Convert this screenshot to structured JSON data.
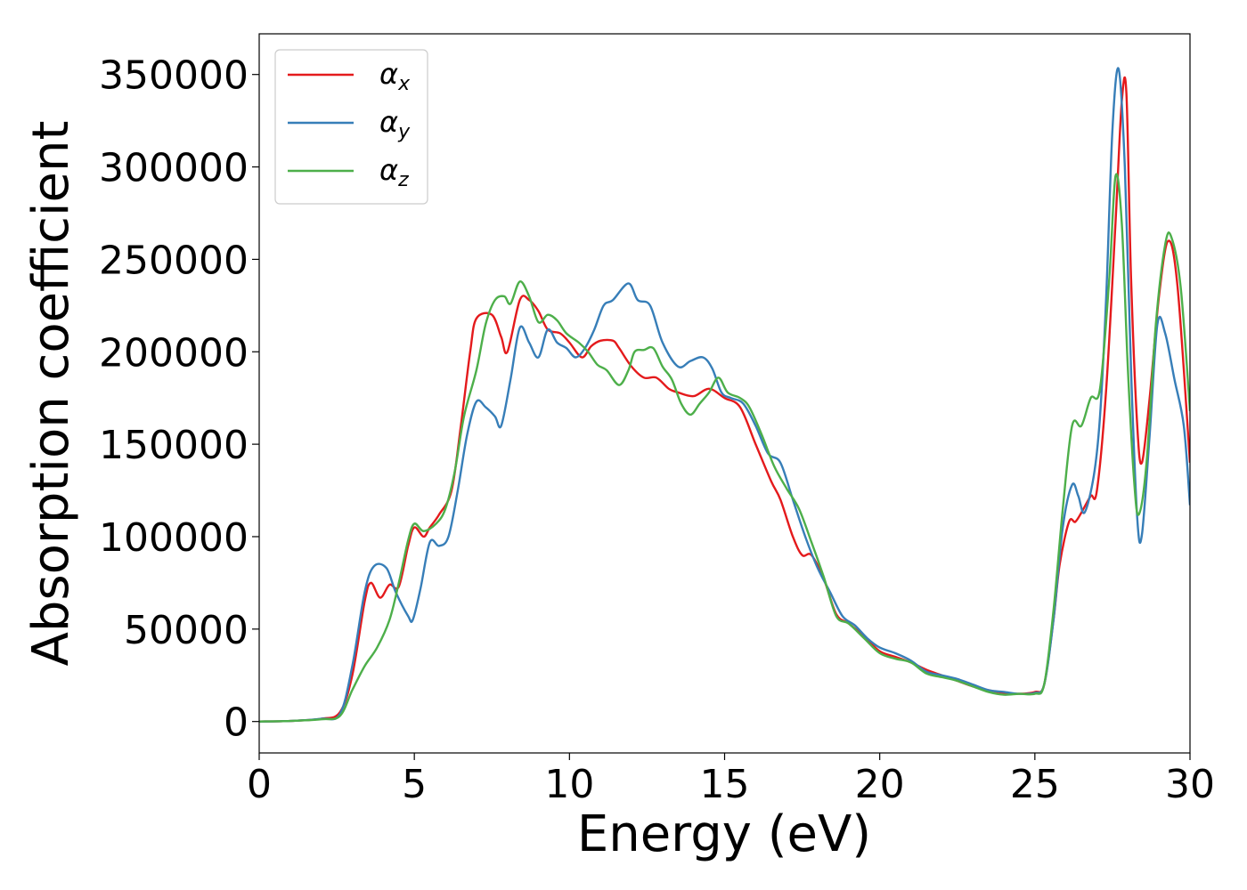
{
  "chart_data": {
    "type": "line",
    "title": "",
    "xlabel": "Energy (eV)",
    "ylabel": "Absorption coefficient",
    "xlim": [
      0,
      30
    ],
    "ylim": [
      -17000,
      372000
    ],
    "xticks": [
      0,
      5,
      10,
      15,
      20,
      25,
      30
    ],
    "xtick_labels": [
      "0",
      "5",
      "10",
      "15",
      "20",
      "25",
      "30"
    ],
    "yticks": [
      0,
      50000,
      100000,
      150000,
      200000,
      250000,
      300000,
      350000
    ],
    "ytick_labels": [
      "0",
      "50000",
      "100000",
      "150000",
      "200000",
      "250000",
      "300000",
      "350000"
    ],
    "grid": false,
    "legend_position": "top-left",
    "series": [
      {
        "name": "α_x",
        "symbol": "α",
        "subscript": "x",
        "color": "#e41a1c",
        "points": [
          [
            0,
            0
          ],
          [
            1,
            300
          ],
          [
            2,
            1500
          ],
          [
            2.6,
            5000
          ],
          [
            3,
            25000
          ],
          [
            3.4,
            65000
          ],
          [
            3.6,
            75000
          ],
          [
            3.9,
            67000
          ],
          [
            4.2,
            74000
          ],
          [
            4.5,
            73000
          ],
          [
            4.8,
            95000
          ],
          [
            5,
            105000
          ],
          [
            5.3,
            100000
          ],
          [
            5.5,
            105000
          ],
          [
            5.8,
            112000
          ],
          [
            6.2,
            125000
          ],
          [
            6.5,
            160000
          ],
          [
            6.8,
            200000
          ],
          [
            7,
            218000
          ],
          [
            7.5,
            220000
          ],
          [
            7.8,
            208000
          ],
          [
            8,
            200000
          ],
          [
            8.4,
            228000
          ],
          [
            8.7,
            228000
          ],
          [
            9,
            222000
          ],
          [
            9.3,
            212000
          ],
          [
            9.7,
            210000
          ],
          [
            10,
            205000
          ],
          [
            10.4,
            197000
          ],
          [
            10.7,
            203000
          ],
          [
            11,
            206000
          ],
          [
            11.4,
            206000
          ],
          [
            11.6,
            202000
          ],
          [
            12,
            192000
          ],
          [
            12.4,
            186000
          ],
          [
            12.8,
            186000
          ],
          [
            13.2,
            180000
          ],
          [
            13.5,
            178000
          ],
          [
            14,
            176000
          ],
          [
            14.5,
            180000
          ],
          [
            15,
            175000
          ],
          [
            15.5,
            170000
          ],
          [
            16,
            150000
          ],
          [
            16.5,
            130000
          ],
          [
            16.8,
            120000
          ],
          [
            17.2,
            100000
          ],
          [
            17.5,
            90000
          ],
          [
            17.8,
            90000
          ],
          [
            18.2,
            77000
          ],
          [
            18.6,
            58000
          ],
          [
            19,
            53000
          ],
          [
            19.5,
            46000
          ],
          [
            20,
            38000
          ],
          [
            20.5,
            35000
          ],
          [
            21,
            32000
          ],
          [
            21.5,
            28000
          ],
          [
            22,
            25000
          ],
          [
            22.5,
            22000
          ],
          [
            23,
            19000
          ],
          [
            23.5,
            17000
          ],
          [
            24,
            15500
          ],
          [
            24.5,
            15000
          ],
          [
            25,
            16000
          ],
          [
            25.3,
            20000
          ],
          [
            25.6,
            55000
          ],
          [
            25.8,
            85000
          ],
          [
            26.1,
            108000
          ],
          [
            26.3,
            108000
          ],
          [
            26.5,
            113000
          ],
          [
            26.8,
            122000
          ],
          [
            27,
            125000
          ],
          [
            27.3,
            180000
          ],
          [
            27.6,
            270000
          ],
          [
            27.8,
            335000
          ],
          [
            27.95,
            340000
          ],
          [
            28.1,
            240000
          ],
          [
            28.3,
            160000
          ],
          [
            28.45,
            140000
          ],
          [
            28.7,
            175000
          ],
          [
            29,
            230000
          ],
          [
            29.3,
            260000
          ],
          [
            29.6,
            235000
          ],
          [
            30,
            140000
          ]
        ]
      },
      {
        "name": "α_y",
        "symbol": "α",
        "subscript": "y",
        "color": "#377eb8",
        "points": [
          [
            0,
            0
          ],
          [
            1,
            300
          ],
          [
            2,
            1500
          ],
          [
            2.6,
            4000
          ],
          [
            3,
            30000
          ],
          [
            3.4,
            70000
          ],
          [
            3.7,
            84000
          ],
          [
            4.1,
            83000
          ],
          [
            4.4,
            70000
          ],
          [
            4.8,
            57000
          ],
          [
            4.95,
            55000
          ],
          [
            5.2,
            72000
          ],
          [
            5.5,
            97000
          ],
          [
            5.8,
            95000
          ],
          [
            6.1,
            100000
          ],
          [
            6.4,
            125000
          ],
          [
            6.7,
            155000
          ],
          [
            7,
            173000
          ],
          [
            7.3,
            170000
          ],
          [
            7.6,
            165000
          ],
          [
            7.8,
            160000
          ],
          [
            8.1,
            185000
          ],
          [
            8.4,
            213000
          ],
          [
            8.7,
            205000
          ],
          [
            9,
            197000
          ],
          [
            9.3,
            212000
          ],
          [
            9.6,
            205000
          ],
          [
            9.9,
            202000
          ],
          [
            10.2,
            197000
          ],
          [
            10.5,
            202000
          ],
          [
            10.8,
            212000
          ],
          [
            11.1,
            225000
          ],
          [
            11.4,
            228000
          ],
          [
            11.9,
            237000
          ],
          [
            12.2,
            228000
          ],
          [
            12.6,
            225000
          ],
          [
            13,
            205000
          ],
          [
            13.5,
            192000
          ],
          [
            13.9,
            195000
          ],
          [
            14.3,
            197000
          ],
          [
            14.6,
            191000
          ],
          [
            14.9,
            178000
          ],
          [
            15.2,
            175000
          ],
          [
            15.6,
            172000
          ],
          [
            16,
            160000
          ],
          [
            16.4,
            145000
          ],
          [
            16.8,
            140000
          ],
          [
            17.2,
            120000
          ],
          [
            17.6,
            100000
          ],
          [
            18,
            83000
          ],
          [
            18.4,
            70000
          ],
          [
            18.8,
            57000
          ],
          [
            19.2,
            52000
          ],
          [
            19.6,
            45000
          ],
          [
            20,
            40000
          ],
          [
            20.5,
            37000
          ],
          [
            21,
            33000
          ],
          [
            21.5,
            27000
          ],
          [
            22,
            25000
          ],
          [
            22.5,
            23000
          ],
          [
            23,
            20000
          ],
          [
            23.5,
            17000
          ],
          [
            24,
            16000
          ],
          [
            24.5,
            15000
          ],
          [
            25,
            15500
          ],
          [
            25.3,
            20000
          ],
          [
            25.6,
            55000
          ],
          [
            25.9,
            105000
          ],
          [
            26.2,
            128000
          ],
          [
            26.4,
            122000
          ],
          [
            26.6,
            113000
          ],
          [
            26.9,
            133000
          ],
          [
            27.1,
            165000
          ],
          [
            27.3,
            230000
          ],
          [
            27.5,
            320000
          ],
          [
            27.7,
            353000
          ],
          [
            27.9,
            300000
          ],
          [
            28.1,
            190000
          ],
          [
            28.3,
            110000
          ],
          [
            28.45,
            101000
          ],
          [
            28.7,
            155000
          ],
          [
            28.95,
            215000
          ],
          [
            29.2,
            210000
          ],
          [
            29.5,
            185000
          ],
          [
            29.8,
            160000
          ],
          [
            30,
            117000
          ]
        ]
      },
      {
        "name": "α_z",
        "symbol": "α",
        "subscript": "z",
        "color": "#4daf4a",
        "points": [
          [
            0,
            0
          ],
          [
            1,
            300
          ],
          [
            2,
            1200
          ],
          [
            2.6,
            3000
          ],
          [
            3,
            17000
          ],
          [
            3.4,
            30000
          ],
          [
            3.8,
            40000
          ],
          [
            4.2,
            55000
          ],
          [
            4.5,
            75000
          ],
          [
            4.8,
            98000
          ],
          [
            5,
            107000
          ],
          [
            5.3,
            103000
          ],
          [
            5.7,
            107000
          ],
          [
            6,
            115000
          ],
          [
            6.3,
            135000
          ],
          [
            6.6,
            165000
          ],
          [
            7,
            190000
          ],
          [
            7.3,
            215000
          ],
          [
            7.6,
            228000
          ],
          [
            7.9,
            230000
          ],
          [
            8.1,
            226000
          ],
          [
            8.4,
            238000
          ],
          [
            8.7,
            230000
          ],
          [
            9,
            216000
          ],
          [
            9.3,
            220000
          ],
          [
            9.6,
            217000
          ],
          [
            9.9,
            210000
          ],
          [
            10.3,
            205000
          ],
          [
            10.6,
            200000
          ],
          [
            10.9,
            193000
          ],
          [
            11.2,
            190000
          ],
          [
            11.6,
            182000
          ],
          [
            11.9,
            190000
          ],
          [
            12.1,
            200000
          ],
          [
            12.4,
            201000
          ],
          [
            12.7,
            202000
          ],
          [
            13,
            192000
          ],
          [
            13.3,
            185000
          ],
          [
            13.6,
            172000
          ],
          [
            13.9,
            166000
          ],
          [
            14.2,
            172000
          ],
          [
            14.5,
            178000
          ],
          [
            14.8,
            186000
          ],
          [
            15.1,
            178000
          ],
          [
            15.5,
            175000
          ],
          [
            15.8,
            170000
          ],
          [
            16.2,
            155000
          ],
          [
            16.6,
            138000
          ],
          [
            17,
            126000
          ],
          [
            17.4,
            115000
          ],
          [
            17.8,
            97000
          ],
          [
            18.2,
            78000
          ],
          [
            18.6,
            57000
          ],
          [
            19,
            53000
          ],
          [
            19.5,
            45000
          ],
          [
            20,
            37000
          ],
          [
            20.5,
            34000
          ],
          [
            21,
            32000
          ],
          [
            21.5,
            26000
          ],
          [
            22,
            24000
          ],
          [
            22.5,
            22000
          ],
          [
            23,
            19000
          ],
          [
            23.5,
            16000
          ],
          [
            24,
            14500
          ],
          [
            24.5,
            15000
          ],
          [
            25,
            15000
          ],
          [
            25.3,
            20000
          ],
          [
            25.6,
            60000
          ],
          [
            25.9,
            115000
          ],
          [
            26.2,
            160000
          ],
          [
            26.5,
            160000
          ],
          [
            26.8,
            175000
          ],
          [
            27.1,
            180000
          ],
          [
            27.4,
            240000
          ],
          [
            27.6,
            295000
          ],
          [
            27.8,
            270000
          ],
          [
            28,
            190000
          ],
          [
            28.2,
            130000
          ],
          [
            28.35,
            112000
          ],
          [
            28.6,
            140000
          ],
          [
            28.9,
            215000
          ],
          [
            29.2,
            258000
          ],
          [
            29.4,
            262000
          ],
          [
            29.7,
            235000
          ],
          [
            30,
            168000
          ]
        ]
      }
    ]
  }
}
